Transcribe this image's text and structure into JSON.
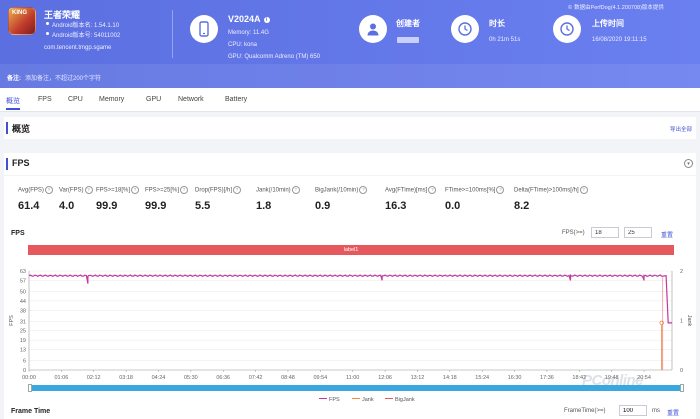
{
  "app": {
    "icon_text": "KING",
    "name": "王者荣耀",
    "android_version": "Android版本名: 1.54.1.10",
    "android_code": "Android版本号: 54011002",
    "package": "com.tencent.tmgp.sgame"
  },
  "note": {
    "label": "备注:",
    "placeholder": "添加备注，不超过200个字符"
  },
  "device": {
    "name": "V2024A",
    "memory": "Memory: 11.4G",
    "cpu": "CPU: kona",
    "gpu": "GPU: Qualcomm Adreno (TM) 650"
  },
  "creator": {
    "label": "创建者"
  },
  "duration": {
    "label": "时长",
    "value": "0h 21m 51s"
  },
  "upload": {
    "label": "上传时间",
    "value": "16/08/2020 19:11:15"
  },
  "report_source": "数据由PerfDog(4.1.200708)版本提供",
  "tabs": [
    "概览",
    "FPS",
    "CPU",
    "Memory",
    "GPU",
    "Network",
    "Battery"
  ],
  "overview": {
    "title": "概览",
    "export": "导出全部"
  },
  "fps_section": {
    "title": "FPS"
  },
  "stats": [
    {
      "label": "Avg(FPS)",
      "value": "61.4"
    },
    {
      "label": "Var(FPS)",
      "value": "4.0"
    },
    {
      "label": "FPS>=18[%]",
      "value": "99.9"
    },
    {
      "label": "FPS>=25[%]",
      "value": "99.9"
    },
    {
      "label": "Drop(FPS)[/h]",
      "value": "5.5"
    },
    {
      "label": "Jank(/10min)",
      "value": "1.8"
    },
    {
      "label": "BigJank(/10min)",
      "value": "0.9"
    },
    {
      "label": "Avg(FTime)[ms]",
      "value": "16.3"
    },
    {
      "label": "FTime>=100ms[%]",
      "value": "0.0"
    },
    {
      "label": "Delta(FTime)>100ms[/h]",
      "value": "8.2"
    }
  ],
  "fps_chart": {
    "title": "FPS",
    "threshold_label": "FPS(>=)",
    "threshold_1": "18",
    "threshold_2": "25",
    "reset": "重置",
    "label_bar": "label1",
    "y_axis_label": "FPS",
    "y2_axis_label": "Jank",
    "legend": [
      "FPS",
      "Jank",
      "BigJank"
    ]
  },
  "frame_time": {
    "title": "Frame Time",
    "threshold_label": "FrameTime(>=)",
    "threshold": "100",
    "unit": "ms",
    "reset": "重置"
  },
  "watermark": "PConline",
  "colors": {
    "accent": "#3f51d8",
    "fps": "#c0399f",
    "jank": "#f08b3a",
    "bigjank": "#e5585d",
    "label_bar": "#e5585d",
    "slider": "#3aa7e0"
  },
  "chart_data": {
    "type": "line",
    "x_ticks": [
      "00:00",
      "01:06",
      "02:12",
      "03:18",
      "04:24",
      "05:30",
      "06:36",
      "07:42",
      "08:48",
      "09:54",
      "11:00",
      "12:06",
      "13:12",
      "14:18",
      "15:24",
      "16:30",
      "17:36",
      "18:42",
      "19:48",
      "20:54"
    ],
    "y_ticks": [
      0,
      6,
      13,
      19,
      25,
      31,
      38,
      44,
      50,
      57,
      63
    ],
    "y_range": [
      0,
      63
    ],
    "y2_ticks": [
      0,
      1,
      2
    ],
    "y2_range": [
      0,
      2
    ],
    "series": [
      {
        "name": "FPS",
        "baseline": 60,
        "dips": [
          [
            2.0,
            55
          ],
          [
            12.0,
            57
          ],
          [
            18.4,
            57
          ],
          [
            20.9,
            57
          ]
        ],
        "final_value": 30
      },
      {
        "name": "Jank",
        "events": [
          [
            21.5,
            1
          ]
        ]
      },
      {
        "name": "BigJank",
        "events": [
          [
            21.5,
            0
          ]
        ]
      }
    ],
    "x_range_min": [
      0,
      21.85
    ],
    "legend_position": "bottom"
  }
}
